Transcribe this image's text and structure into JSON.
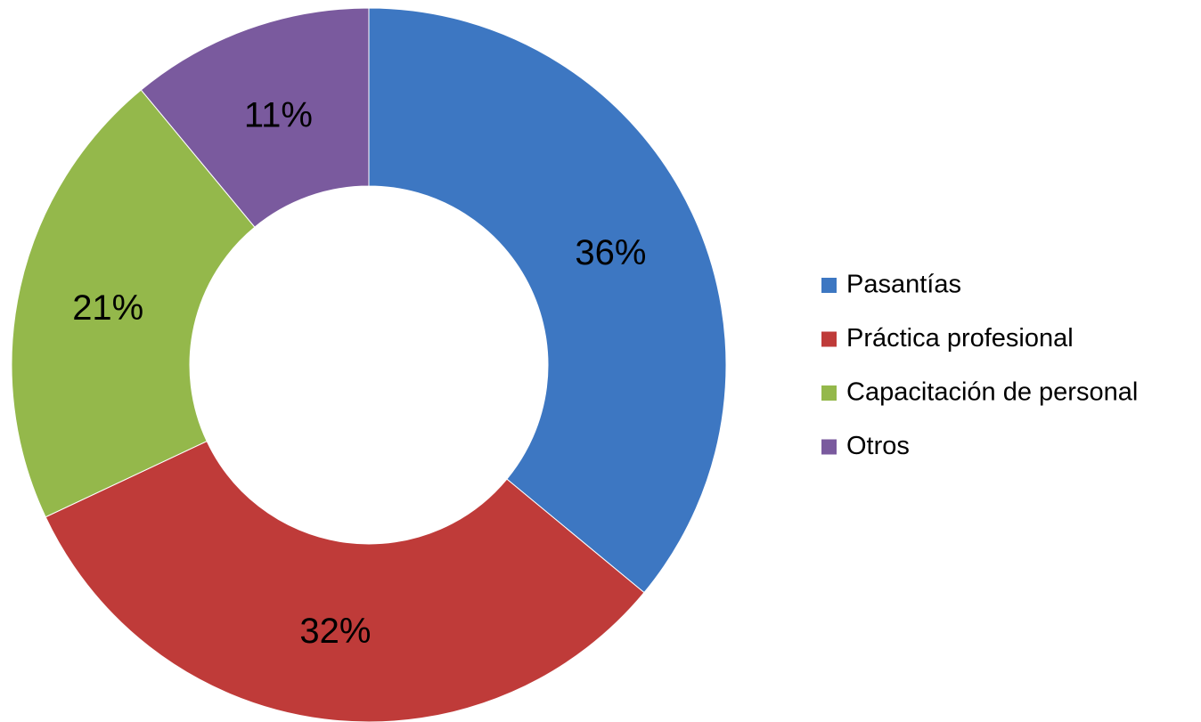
{
  "chart_data": {
    "type": "donut",
    "categories": [
      "Pasantías",
      "Práctica profesional",
      "Capacitación de personal",
      "Otros"
    ],
    "values": [
      36,
      32,
      21,
      11
    ],
    "value_labels": [
      "36%",
      "32%",
      "21%",
      "11%"
    ],
    "colors": [
      "#3d77c2",
      "#bf3b39",
      "#94b84b",
      "#7a5a9e"
    ],
    "legend": "right"
  }
}
